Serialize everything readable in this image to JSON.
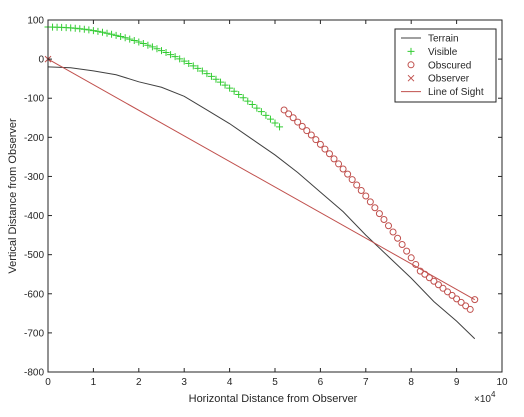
{
  "chart_data": {
    "type": "line",
    "xlabel": "Horizontal Distance from Observer",
    "ylabel": "Vertical Distance from Observer",
    "x_exponent_label": "×10",
    "x_exponent_power": "4",
    "x_scale_factor": 10000,
    "xlim": [
      0,
      100000
    ],
    "ylim": [
      -800,
      100
    ],
    "x_ticks": [
      0,
      10000,
      20000,
      30000,
      40000,
      50000,
      60000,
      70000,
      80000,
      90000,
      100000
    ],
    "x_tick_labels": [
      "0",
      "1",
      "2",
      "3",
      "4",
      "5",
      "6",
      "7",
      "8",
      "9",
      "10"
    ],
    "y_ticks": [
      -800,
      -700,
      -600,
      -500,
      -400,
      -300,
      -200,
      -100,
      0,
      100
    ],
    "y_tick_labels": [
      "-800",
      "-700",
      "-600",
      "-500",
      "-400",
      "-300",
      "-200",
      "-100",
      "0",
      "100"
    ],
    "grid": false,
    "legend_position": "top-right",
    "series": [
      {
        "name": "Terrain",
        "kind": "line",
        "color": "#404040",
        "x": [
          0,
          5000,
          10000,
          15000,
          20000,
          25000,
          30000,
          35000,
          40000,
          45000,
          50000,
          55000,
          60000,
          65000,
          70000,
          75000,
          80000,
          85000,
          90000,
          94000
        ],
        "y": [
          -20,
          -22,
          -30,
          -40,
          -58,
          -72,
          -95,
          -130,
          -165,
          -205,
          -245,
          -290,
          -340,
          -390,
          -450,
          -505,
          -560,
          -620,
          -670,
          -715
        ]
      },
      {
        "name": "Visible",
        "kind": "marker",
        "marker": "plus",
        "color": "#33cc33",
        "x": [
          0,
          1000,
          2000,
          3000,
          4000,
          5000,
          6000,
          7000,
          8000,
          9000,
          10000,
          11000,
          12000,
          13000,
          14000,
          15000,
          16000,
          17000,
          18000,
          19000,
          20000,
          21000,
          22000,
          23000,
          24000,
          25000,
          26000,
          27000,
          28000,
          29000,
          30000,
          31000,
          32000,
          33000,
          34000,
          35000,
          36000,
          37000,
          38000,
          39000,
          40000,
          41000,
          42000,
          43000,
          44000,
          45000,
          46000,
          47000,
          48000,
          49000,
          50000,
          51000
        ],
        "y": [
          82,
          81.9,
          81.6,
          81.2,
          80.6,
          79.8,
          78.8,
          77.6,
          76.2,
          74.6,
          72.8,
          70.8,
          68.6,
          66.2,
          63.6,
          60.8,
          57.8,
          54.6,
          51.2,
          47.6,
          43.8,
          39.8,
          35.6,
          31.2,
          26.6,
          21.8,
          16.8,
          11.6,
          6.2,
          0.6,
          -5.2,
          -11.2,
          -17.4,
          -23.8,
          -30.4,
          -37.2,
          -44.2,
          -51.4,
          -58.8,
          -66.4,
          -74.2,
          -82.2,
          -90.4,
          -98.8,
          -107.4,
          -116.2,
          -125.2,
          -134.4,
          -143.8,
          -153.4,
          -163.2,
          -173.2
        ]
      },
      {
        "name": "Obscured",
        "kind": "marker",
        "marker": "circle",
        "color": "#c0504d",
        "x": [
          52000,
          53000,
          54000,
          55000,
          56000,
          57000,
          58000,
          59000,
          60000,
          61000,
          62000,
          63000,
          64000,
          65000,
          66000,
          67000,
          68000,
          69000,
          70000,
          71000,
          72000,
          73000,
          74000,
          75000,
          76000,
          77000,
          78000,
          79000,
          80000,
          81000,
          82000,
          83000,
          84000,
          85000,
          86000,
          87000,
          88000,
          89000,
          90000,
          91000,
          92000,
          93000,
          94000
        ],
        "y": [
          -130,
          -140,
          -150,
          -161,
          -172,
          -183,
          -194,
          -206,
          -218,
          -230,
          -242,
          -255,
          -268,
          -281,
          -294,
          -308,
          -322,
          -336,
          -350,
          -365,
          -380,
          -395,
          -410,
          -426,
          -442,
          -458,
          -474,
          -491,
          -508,
          -525,
          -542,
          -550,
          -559,
          -568,
          -577,
          -586,
          -595,
          -604,
          -613,
          -622,
          -631,
          -640,
          -615
        ]
      },
      {
        "name": "Observer",
        "kind": "marker",
        "marker": "cross",
        "color": "#c0504d",
        "x": [
          0
        ],
        "y": [
          0
        ]
      },
      {
        "name": "Line of Sight",
        "kind": "line",
        "color": "#c0504d",
        "x": [
          0,
          94000
        ],
        "y": [
          0,
          -615
        ]
      }
    ]
  }
}
